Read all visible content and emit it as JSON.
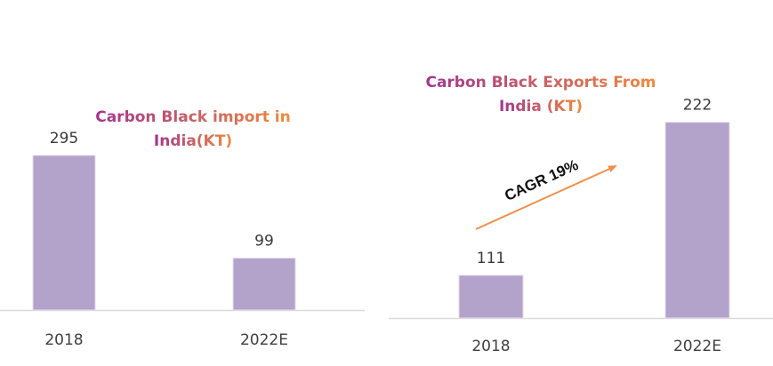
{
  "colors": {
    "bar": "#b3a2c9",
    "axis": "#d9d9d9",
    "title_start": "#a3358f",
    "title_end": "#f08a3c",
    "arrow": "#f0904a"
  },
  "chart_data": [
    {
      "type": "bar",
      "title_lines": [
        "Carbon Black import in",
        "India(KT)"
      ],
      "categories": [
        "2018",
        "2022E"
      ],
      "values": [
        295,
        99
      ],
      "value_labels": [
        "295",
        "99"
      ],
      "xlabel": "",
      "ylabel": "",
      "ylim": [
        0,
        300
      ],
      "grid": false
    },
    {
      "type": "bar",
      "title_lines": [
        "Carbon Black Exports From",
        "India (KT)"
      ],
      "categories": [
        "2018",
        "2022E"
      ],
      "values": [
        111,
        222
      ],
      "value_labels": [
        "111",
        "222"
      ],
      "xlabel": "",
      "ylabel": "",
      "ylim": [
        80,
        225
      ],
      "grid": false,
      "annotation": "CAGR 19%"
    }
  ]
}
